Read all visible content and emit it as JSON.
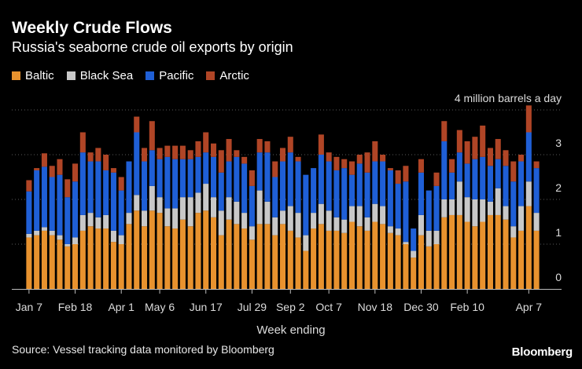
{
  "chart_data": {
    "type": "bar",
    "stacked": true,
    "title": "Weekly Crude Flows",
    "subtitle": "Russia's seaborne crude oil exports by origin",
    "xlabel": "Week ending",
    "unit_label": "4 million barrels a day",
    "ylim": [
      0,
      4
    ],
    "yticks": [
      0,
      1,
      2,
      3
    ],
    "grid": true,
    "legend_position": "top-left",
    "x_tick_labels": [
      "Jan 7",
      "Feb 18",
      "Apr 1",
      "May 6",
      "Jun 17",
      "Jul 29",
      "Sep 2",
      "Oct 7",
      "Nov 18",
      "Dec 30",
      "Feb 10",
      "Apr 7"
    ],
    "x_tick_positions": [
      0,
      6,
      12,
      17,
      23,
      29,
      34,
      39,
      45,
      51,
      57,
      65
    ],
    "series": [
      {
        "name": "Baltic",
        "color": "#e8922e",
        "values": [
          1.15,
          1.2,
          1.3,
          1.2,
          1.1,
          0.95,
          1.0,
          1.3,
          1.4,
          1.35,
          1.35,
          1.05,
          1.0,
          1.45,
          1.75,
          1.4,
          1.75,
          1.7,
          1.4,
          1.35,
          1.55,
          1.4,
          1.7,
          1.75,
          1.6,
          1.2,
          1.55,
          1.45,
          1.35,
          1.1,
          1.45,
          1.45,
          1.2,
          1.45,
          1.3,
          1.15,
          0.85,
          1.35,
          1.45,
          1.3,
          1.3,
          1.25,
          1.5,
          1.4,
          1.3,
          1.5,
          1.45,
          1.25,
          1.2,
          1.0,
          0.7,
          1.2,
          0.95,
          1.0,
          1.6,
          1.65,
          1.65,
          1.5,
          1.4,
          1.5,
          1.65,
          1.65,
          1.55,
          1.15,
          1.3,
          1.85,
          1.3
        ]
      },
      {
        "name": "Black Sea",
        "color": "#c8c8c8",
        "values": [
          0.08,
          0.1,
          0.08,
          0.1,
          0.1,
          0.05,
          0.15,
          0.35,
          0.3,
          0.25,
          0.3,
          0.25,
          0.2,
          0.25,
          0.35,
          0.35,
          0.55,
          0.35,
          0.4,
          0.45,
          0.5,
          0.65,
          0.45,
          0.6,
          0.45,
          0.55,
          0.5,
          0.5,
          0.35,
          0.3,
          0.75,
          0.5,
          0.4,
          0.3,
          0.55,
          0.55,
          0.35,
          0.35,
          0.45,
          0.45,
          0.3,
          0.3,
          0.35,
          0.45,
          0.3,
          0.4,
          0.4,
          0.15,
          0.15,
          0.05,
          0.15,
          0.45,
          0.35,
          0.3,
          0.4,
          0.35,
          0.75,
          0.55,
          0.6,
          0.5,
          0.3,
          0.6,
          0.3,
          0.25,
          0.55,
          0.55,
          0.4
        ]
      },
      {
        "name": "Pacific",
        "color": "#1f5fd6",
        "values": [
          0.95,
          1.35,
          1.35,
          1.2,
          1.35,
          1.05,
          1.25,
          1.4,
          1.15,
          1.25,
          1.0,
          1.3,
          1.0,
          1.15,
          1.4,
          1.1,
          0.8,
          0.85,
          1.15,
          1.1,
          0.85,
          0.85,
          0.8,
          0.7,
          0.9,
          0.85,
          0.8,
          1.0,
          1.1,
          0.9,
          0.85,
          1.1,
          0.9,
          1.1,
          1.2,
          1.15,
          1.35,
          1.0,
          1.1,
          1.1,
          1.05,
          1.15,
          0.7,
          0.95,
          1.0,
          0.95,
          1.0,
          1.25,
          1.0,
          1.35,
          0.5,
          0.95,
          0.9,
          1.0,
          1.3,
          0.6,
          0.65,
          0.75,
          0.9,
          0.95,
          0.8,
          0.65,
          0.9,
          1.0,
          1.0,
          1.1,
          1.0
        ]
      },
      {
        "name": "Arctic",
        "color": "#b04526",
        "values": [
          0.25,
          0.05,
          0.3,
          0.25,
          0.35,
          0.4,
          0.4,
          0.45,
          0.2,
          0.3,
          0.35,
          0.1,
          0.3,
          0.0,
          0.35,
          0.3,
          0.65,
          0.25,
          0.25,
          0.3,
          0.3,
          0.2,
          0.35,
          0.45,
          0.3,
          0.5,
          0.5,
          0.15,
          0.15,
          0.35,
          0.3,
          0.25,
          0.35,
          0.3,
          0.35,
          0.1,
          0.0,
          0.0,
          0.45,
          0.2,
          0.3,
          0.2,
          0.3,
          0.2,
          0.45,
          0.45,
          0.15,
          0.05,
          0.3,
          0.35,
          0.0,
          0.3,
          0.0,
          0.3,
          0.45,
          0.3,
          0.5,
          0.5,
          0.5,
          0.7,
          0.4,
          0.45,
          0.35,
          0.45,
          0.15,
          0.6,
          0.15
        ]
      }
    ]
  },
  "source": "Source: Vessel tracking data monitored by Bloomberg",
  "brand": "Bloomberg"
}
